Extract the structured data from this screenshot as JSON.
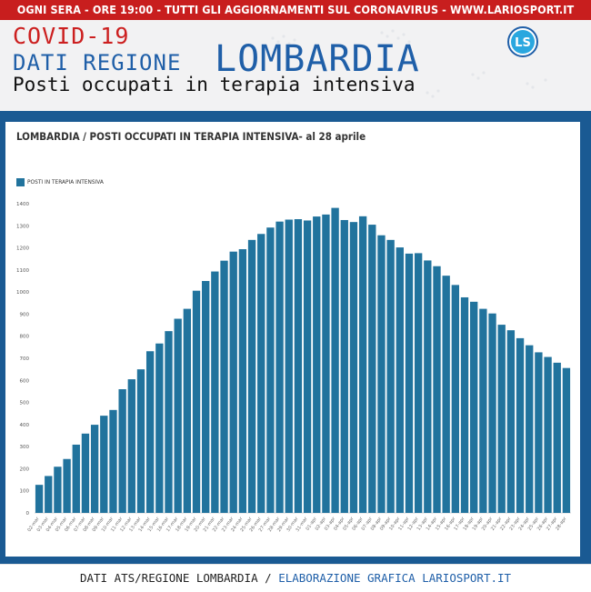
{
  "banner": {
    "text": "OGNI SERA - ORE 19:00 - TUTTI GLI AGGIORNAMENTI SUL CORONAVIRUS - WWW.LARIOSPORT.IT"
  },
  "header": {
    "line1": "COVID-19",
    "line2": "DATI REGIONE",
    "region": "LOMBARDIA",
    "subtitle": "Posti occupati in terapia intensiva",
    "logo_text": "LS",
    "logo_icon": "lariosport-logo-icon"
  },
  "colors": {
    "banner": "#c81e1e",
    "accent_blue": "#1f5fa8",
    "panel": "#1a5a93",
    "bar": "#21739d",
    "covid_red": "#cc1f1f"
  },
  "chart_data": {
    "type": "bar",
    "title": "LOMBARDIA / POSTI OCCUPATI IN TERAPIA INTENSIVA- al 28 aprile",
    "xlabel": "",
    "ylabel": "",
    "ylim": [
      0,
      1400
    ],
    "yticks": [
      0,
      100,
      200,
      300,
      400,
      500,
      600,
      700,
      800,
      900,
      1000,
      1100,
      1200,
      1300,
      1400
    ],
    "legend_position": "top-left",
    "grid": false,
    "categories": [
      "02-mar",
      "03-mar",
      "04-mar",
      "05-mar",
      "06-mar",
      "07-mar",
      "08-mar",
      "09-mar",
      "10-mar",
      "11-mar",
      "12-mar",
      "13-mar",
      "14-mar",
      "15-mar",
      "16-mar",
      "17-mar",
      "18-mar",
      "19-mar",
      "20-mar",
      "21-mar",
      "22-mar",
      "23-mar",
      "24-mar",
      "25-mar",
      "26-mar",
      "27-mar",
      "28-mar",
      "29-mar",
      "30-mar",
      "31-mar",
      "01-apr",
      "02-apr",
      "03-apr",
      "04-apr",
      "05-apr",
      "06-apr",
      "07-apr",
      "08-apr",
      "09-apr",
      "10-apr",
      "11-apr",
      "12-apr",
      "13-apr",
      "14-apr",
      "15-apr",
      "16-apr",
      "17-apr",
      "18-apr",
      "19-apr",
      "20-apr",
      "21-apr",
      "22-apr",
      "23-apr",
      "24-apr",
      "25-apr",
      "26-apr",
      "27-apr",
      "28-apr"
    ],
    "series": [
      {
        "name": "POSTI IN TERAPIA INTENSIVA",
        "values": [
          127,
          167,
          209,
          244,
          309,
          359,
          399,
          440,
          466,
          560,
          605,
          650,
          732,
          767,
          823,
          879,
          924,
          1006,
          1050,
          1093,
          1142,
          1183,
          1194,
          1236,
          1263,
          1292,
          1319,
          1328,
          1330,
          1324,
          1342,
          1351,
          1381,
          1326,
          1317,
          1343,
          1305,
          1257,
          1236,
          1202,
          1174,
          1176,
          1143,
          1117,
          1074,
          1032,
          976,
          956,
          924,
          903,
          852,
          827,
          791,
          759,
          727,
          706,
          680,
          656
        ]
      }
    ]
  },
  "footer": {
    "left": "DATI ATS/REGIONE LOMBARDIA",
    "separator": " / ",
    "right": "ELABORAZIONE GRAFICA LARIOSPORT.IT"
  }
}
